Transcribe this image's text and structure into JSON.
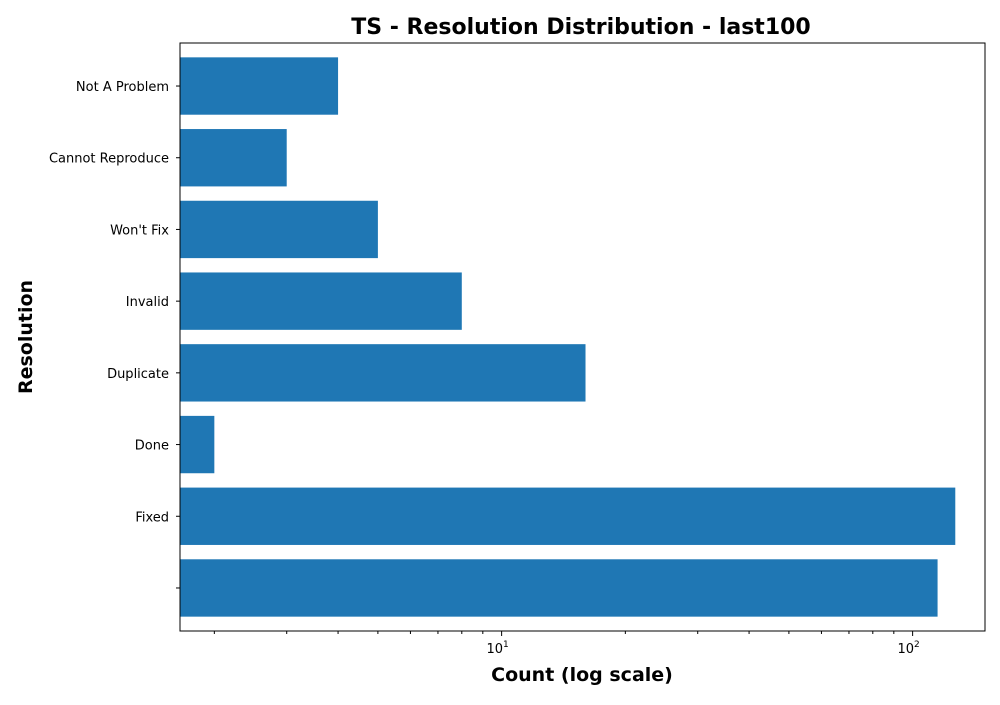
{
  "chart_data": {
    "type": "bar",
    "orientation": "horizontal",
    "title": "TS - Resolution Distribution - last100",
    "xlabel": "Count (log scale)",
    "ylabel": "Resolution",
    "xscale": "log",
    "xlim": [
      1.65,
      150
    ],
    "x_tick_labels": [
      "10",
      "1",
      "10",
      "2"
    ],
    "categories": [
      "",
      "Fixed",
      "Done",
      "Duplicate",
      "Invalid",
      "Won't Fix",
      "Cannot Reproduce",
      "Not A Problem"
    ],
    "values": [
      115,
      127,
      2,
      16,
      8,
      5,
      3,
      4
    ],
    "bar_color": "#1f77b4",
    "grid": false
  }
}
